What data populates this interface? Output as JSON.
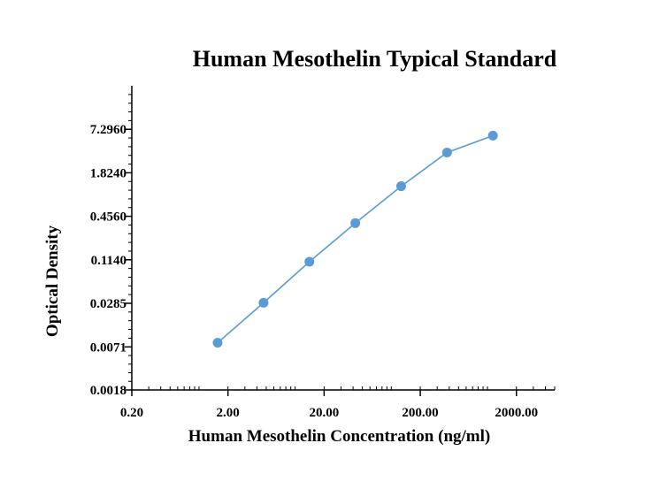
{
  "chart_data": {
    "type": "line",
    "title": "Human Mesothelin Typical Standard",
    "xlabel": "Human Mesothelin Concentration (ng/ml)",
    "ylabel": "Optical Density",
    "x_scale": "log",
    "y_scale": "log",
    "xlim": [
      0.2,
      5000
    ],
    "ylim": [
      0.0018,
      29.2
    ],
    "x_ticks": [
      0.2,
      2,
      20,
      200,
      2000
    ],
    "x_tick_labels": [
      "0.20",
      "2.00",
      "20.00",
      "200.00",
      "2000.00"
    ],
    "y_ticks": [
      0.0018,
      0.0071,
      0.0285,
      0.114,
      0.456,
      1.824,
      7.296
    ],
    "y_tick_labels": [
      "0.0018",
      "0.0071",
      "0.0285",
      "0.1140",
      "0.4560",
      "1.8240",
      "7.2960"
    ],
    "grid": false,
    "series": [
      {
        "color": "#5b9bd5",
        "x": [
          1.56,
          4.69,
          14.06,
          42.19,
          126.56,
          379.69,
          1139.06
        ],
        "y": [
          0.0081,
          0.029,
          0.107,
          0.367,
          1.19,
          3.48,
          5.96
        ]
      }
    ]
  }
}
